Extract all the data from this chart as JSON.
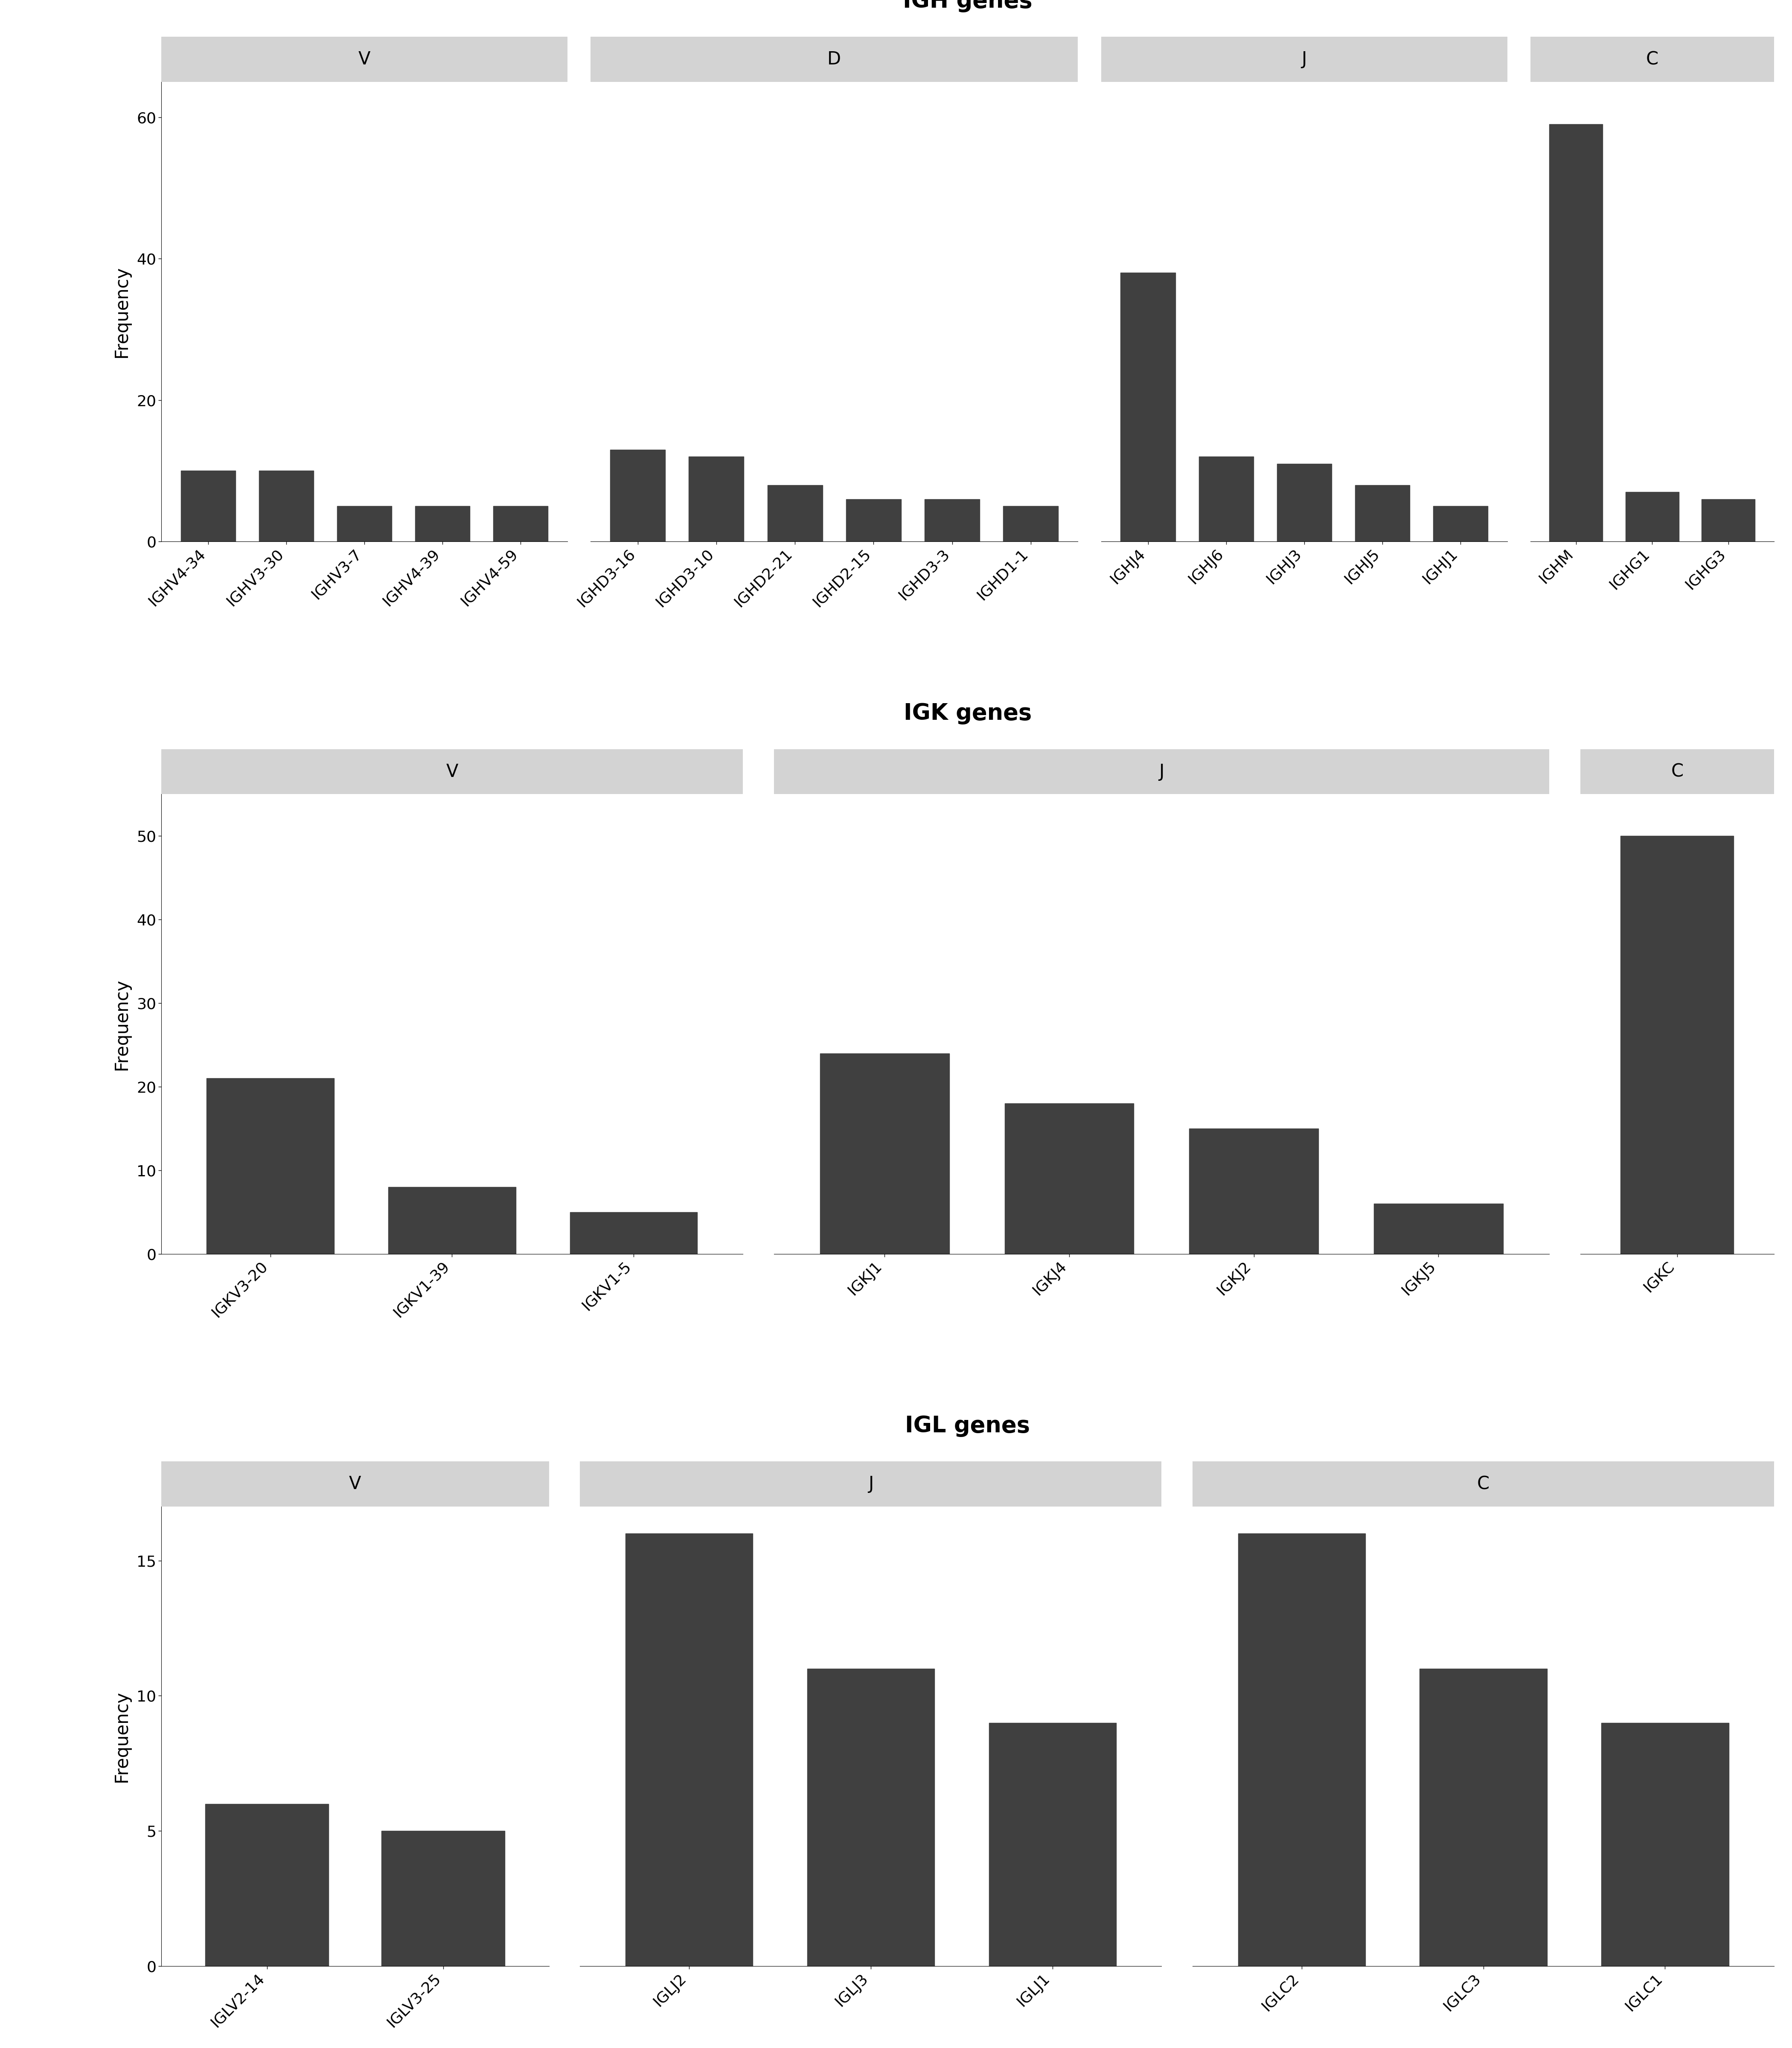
{
  "IGH": {
    "title": "IGH genes",
    "groups": [
      {
        "label": "V",
        "genes": [
          "IGHV4-34",
          "IGHV3-30",
          "IGHV3-7",
          "IGHV4-39",
          "IGHV4-59"
        ],
        "values": [
          10,
          10,
          5,
          5,
          5
        ]
      },
      {
        "label": "D",
        "genes": [
          "IGHD3-16",
          "IGHD3-10",
          "IGHD2-21",
          "IGHD2-15",
          "IGHD3-3",
          "IGHD1-1"
        ],
        "values": [
          13,
          12,
          8,
          6,
          6,
          5
        ]
      },
      {
        "label": "J",
        "genes": [
          "IGHJ4",
          "IGHJ6",
          "IGHJ3",
          "IGHJ5",
          "IGHJ1"
        ],
        "values": [
          38,
          12,
          11,
          8,
          5
        ]
      },
      {
        "label": "C",
        "genes": [
          "IGHM",
          "IGHG1",
          "IGHG3"
        ],
        "values": [
          59,
          7,
          6
        ]
      }
    ],
    "ylim": [
      0,
      65
    ],
    "yticks": [
      0,
      20,
      40,
      60
    ]
  },
  "IGK": {
    "title": "IGK genes",
    "groups": [
      {
        "label": "V",
        "genes": [
          "IGKV3-20",
          "IGKV1-39",
          "IGKV1-5"
        ],
        "values": [
          21,
          8,
          5
        ]
      },
      {
        "label": "J",
        "genes": [
          "IGKJ1",
          "IGKJ4",
          "IGKJ2",
          "IGKJ5"
        ],
        "values": [
          24,
          18,
          15,
          6
        ]
      },
      {
        "label": "C",
        "genes": [
          "IGKC"
        ],
        "values": [
          50
        ]
      }
    ],
    "ylim": [
      0,
      55
    ],
    "yticks": [
      0,
      10,
      20,
      30,
      40,
      50
    ]
  },
  "IGL": {
    "title": "IGL genes",
    "groups": [
      {
        "label": "V",
        "genes": [
          "IGLV2-14",
          "IGLV3-25"
        ],
        "values": [
          6,
          5
        ]
      },
      {
        "label": "J",
        "genes": [
          "IGLJ2",
          "IGLJ3",
          "IGLJ1"
        ],
        "values": [
          16,
          11,
          9
        ]
      },
      {
        "label": "C",
        "genes": [
          "IGLC2",
          "IGLC3",
          "IGLC1"
        ],
        "values": [
          16,
          11,
          9
        ]
      }
    ],
    "ylim": [
      0,
      17
    ],
    "yticks": [
      0,
      5,
      10,
      15
    ]
  },
  "bar_color": "#404040",
  "facet_bg_color": "#d3d3d3",
  "facet_label_fontsize": 30,
  "title_fontsize": 38,
  "axis_label_fontsize": 30,
  "tick_fontsize": 26,
  "background_color": "#ffffff",
  "ylabel": "Frequency"
}
